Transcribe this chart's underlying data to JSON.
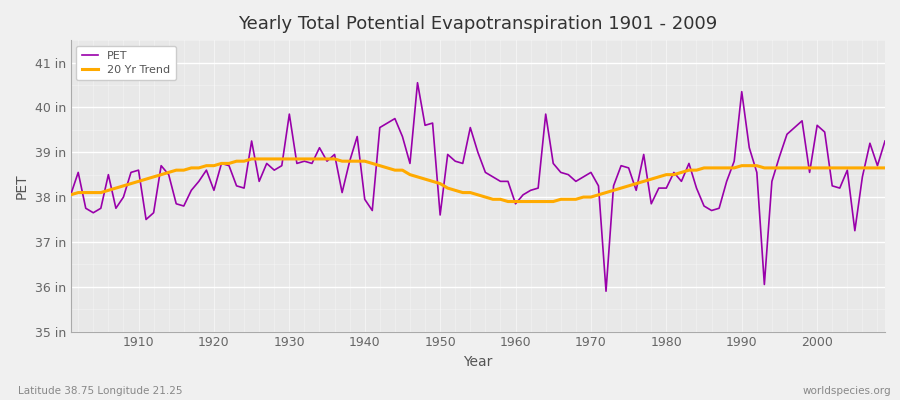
{
  "title": "Yearly Total Potential Evapotranspiration 1901 - 2009",
  "xlabel": "Year",
  "ylabel": "PET",
  "subtitle_left": "Latitude 38.75 Longitude 21.25",
  "subtitle_right": "worldspecies.org",
  "pet_color": "#9900aa",
  "trend_color": "#ffaa00",
  "background_color": "#f0f0f0",
  "plot_bg_color": "#e8e8e8",
  "ylim": [
    35,
    41.5
  ],
  "yticks": [
    35,
    36,
    37,
    38,
    39,
    40,
    41
  ],
  "ytick_labels": [
    "35 in",
    "36 in",
    "37 in",
    "38 in",
    "39 in",
    "40 in",
    "41 in"
  ],
  "years": [
    1901,
    1902,
    1903,
    1904,
    1905,
    1906,
    1907,
    1908,
    1909,
    1910,
    1911,
    1912,
    1913,
    1914,
    1915,
    1916,
    1917,
    1918,
    1919,
    1920,
    1921,
    1922,
    1923,
    1924,
    1925,
    1926,
    1927,
    1928,
    1929,
    1930,
    1931,
    1932,
    1933,
    1934,
    1935,
    1936,
    1937,
    1938,
    1939,
    1940,
    1941,
    1942,
    1943,
    1944,
    1945,
    1946,
    1947,
    1948,
    1949,
    1950,
    1951,
    1952,
    1953,
    1954,
    1955,
    1956,
    1957,
    1958,
    1959,
    1960,
    1961,
    1962,
    1963,
    1964,
    1965,
    1966,
    1967,
    1968,
    1969,
    1970,
    1971,
    1972,
    1973,
    1974,
    1975,
    1976,
    1977,
    1978,
    1979,
    1980,
    1981,
    1982,
    1983,
    1984,
    1985,
    1986,
    1987,
    1988,
    1989,
    1990,
    1991,
    1992,
    1993,
    1994,
    1995,
    1996,
    1997,
    1998,
    1999,
    2000,
    2001,
    2002,
    2003,
    2004,
    2005,
    2006,
    2007,
    2008,
    2009
  ],
  "pet": [
    38.05,
    38.55,
    37.75,
    37.65,
    37.75,
    38.5,
    37.75,
    38.0,
    38.55,
    38.6,
    37.5,
    37.65,
    38.7,
    38.5,
    37.85,
    37.8,
    38.15,
    38.35,
    38.6,
    38.15,
    38.75,
    38.7,
    38.25,
    38.2,
    39.25,
    38.35,
    38.75,
    38.6,
    38.7,
    39.85,
    38.75,
    38.8,
    38.75,
    39.1,
    38.8,
    38.95,
    38.1,
    38.8,
    39.35,
    37.95,
    37.7,
    39.55,
    39.65,
    39.75,
    39.35,
    38.75,
    40.55,
    39.6,
    39.65,
    37.6,
    38.95,
    38.8,
    38.75,
    39.55,
    39.0,
    38.55,
    38.45,
    38.35,
    38.35,
    37.85,
    38.05,
    38.15,
    38.2,
    39.85,
    38.75,
    38.55,
    38.5,
    38.35,
    38.45,
    38.55,
    38.25,
    35.9,
    38.25,
    38.7,
    38.65,
    38.15,
    38.95,
    37.85,
    38.2,
    38.2,
    38.55,
    38.35,
    38.75,
    38.2,
    37.8,
    37.7,
    37.75,
    38.35,
    38.8,
    40.35,
    39.1,
    38.55,
    36.05,
    38.35,
    38.9,
    39.4,
    39.55,
    39.7,
    38.55,
    39.6,
    39.45,
    38.25,
    38.2,
    38.6,
    37.25,
    38.45,
    39.2,
    38.7,
    39.25
  ],
  "trend": [
    38.05,
    38.1,
    38.1,
    38.1,
    38.1,
    38.15,
    38.2,
    38.25,
    38.3,
    38.35,
    38.4,
    38.45,
    38.5,
    38.55,
    38.6,
    38.6,
    38.65,
    38.65,
    38.7,
    38.7,
    38.75,
    38.75,
    38.8,
    38.8,
    38.85,
    38.85,
    38.85,
    38.85,
    38.85,
    38.85,
    38.85,
    38.85,
    38.85,
    38.85,
    38.85,
    38.85,
    38.8,
    38.8,
    38.8,
    38.8,
    38.75,
    38.7,
    38.65,
    38.6,
    38.6,
    38.5,
    38.45,
    38.4,
    38.35,
    38.3,
    38.2,
    38.15,
    38.1,
    38.1,
    38.05,
    38.0,
    37.95,
    37.95,
    37.9,
    37.9,
    37.9,
    37.9,
    37.9,
    37.9,
    37.9,
    37.95,
    37.95,
    37.95,
    38.0,
    38.0,
    38.05,
    38.1,
    38.15,
    38.2,
    38.25,
    38.3,
    38.35,
    38.4,
    38.45,
    38.5,
    38.5,
    38.55,
    38.6,
    38.6,
    38.65,
    38.65,
    38.65,
    38.65,
    38.65,
    38.7,
    38.7,
    38.7,
    38.65,
    38.65,
    38.65,
    38.65,
    38.65,
    38.65,
    38.65,
    38.65,
    38.65,
    38.65,
    38.65,
    38.65,
    38.65,
    38.65,
    38.65,
    38.65,
    38.65
  ]
}
